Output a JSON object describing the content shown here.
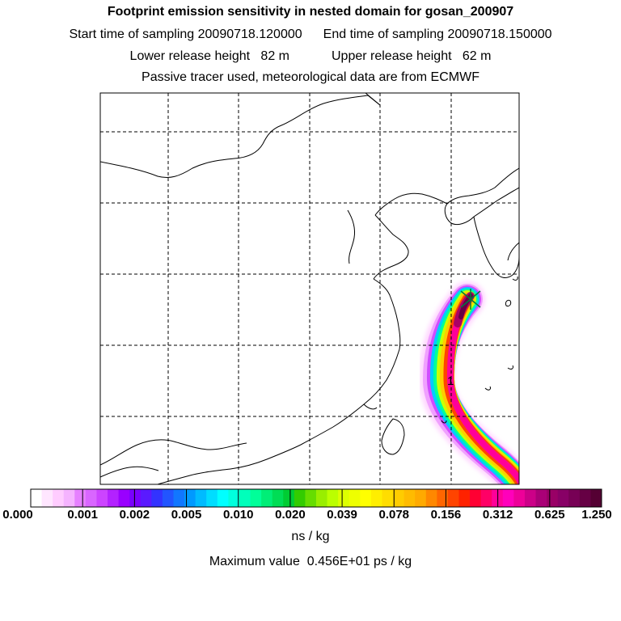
{
  "header": {
    "title": "Footprint emission sensitivity in nested domain for gosan_200907",
    "start_time": "Start time of sampling 20090718.120000",
    "end_time": "End time of sampling 20090718.150000",
    "lower_release": "Lower release height   82 m",
    "upper_release": "Upper release height   62 m",
    "tracer_info": "Passive tracer used, meteorological data are from ECMWF"
  },
  "map": {
    "grid_lines": "dashed",
    "release_marker": "x-cross",
    "trajectory_label": "1",
    "plume_colors": [
      "#ffccff",
      "#ee66ff",
      "#cc44ff",
      "#00ccff",
      "#00ff99",
      "#ccff00",
      "#ffcc00",
      "#ff4400",
      "#ff0099",
      "#aa0066",
      "#660044"
    ]
  },
  "colorbar": {
    "labels": [
      "0.000",
      "0.001",
      "0.002",
      "0.005",
      "0.010",
      "0.020",
      "0.039",
      "0.078",
      "0.156",
      "0.312",
      "0.625",
      "1.250"
    ],
    "colors": [
      "#ffffff",
      "#ffe6ff",
      "#ffccff",
      "#f5b3ff",
      "#e680ff",
      "#d966ff",
      "#cc44ff",
      "#b322ff",
      "#9900ff",
      "#7a00ff",
      "#5a1aff",
      "#3333ff",
      "#2255ff",
      "#1177ff",
      "#0099ff",
      "#00bbff",
      "#00ddff",
      "#00ffff",
      "#00ffdd",
      "#00ffbb",
      "#00ff99",
      "#00ee77",
      "#00dd55",
      "#00cc33",
      "#33cc00",
      "#66dd00",
      "#99ee00",
      "#bbff00",
      "#ddff00",
      "#eeff00",
      "#ffff00",
      "#ffee00",
      "#ffdd00",
      "#ffcc00",
      "#ffbb00",
      "#ffaa00",
      "#ff8800",
      "#ff6600",
      "#ff4400",
      "#ff2200",
      "#ff0033",
      "#ff0066",
      "#ff0099",
      "#ff00bb",
      "#ee0099",
      "#cc0088",
      "#aa0077",
      "#990066",
      "#880066",
      "#770055",
      "#660044",
      "#550033"
    ],
    "unit": "ns / kg",
    "max_value": "Maximum value  0.456E+01 ps / kg"
  }
}
